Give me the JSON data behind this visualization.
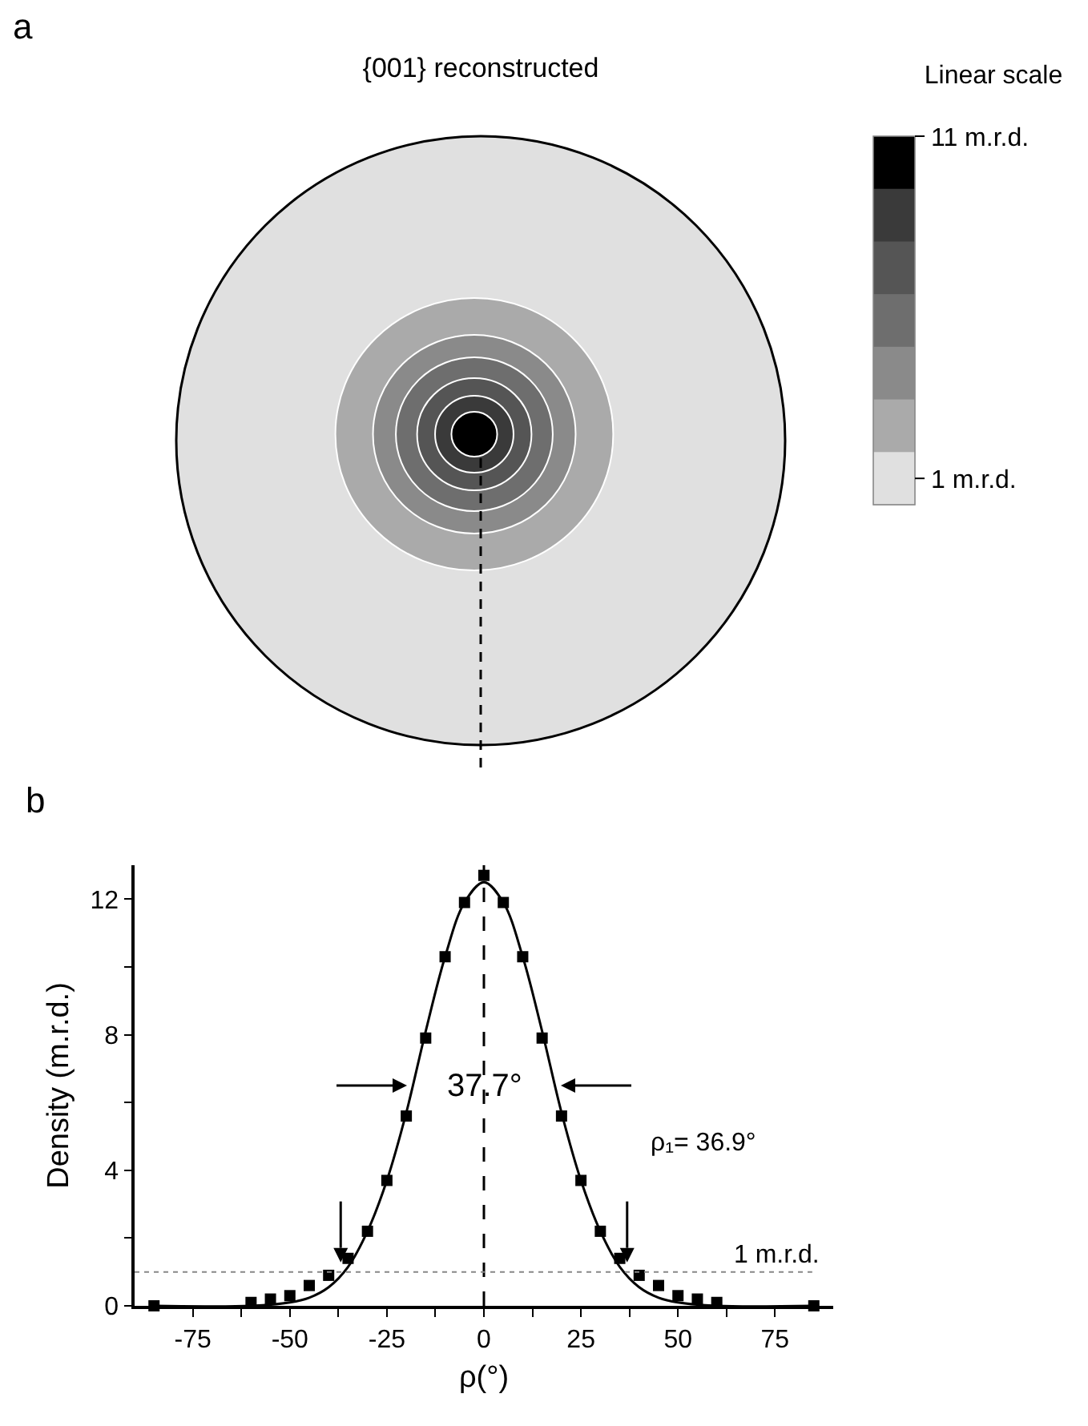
{
  "chart_data": [
    {
      "type": "other",
      "title": "{001} reconstructed",
      "clabel": "Linear scale",
      "colors": [
        "#000000",
        "#3a3a3a",
        "#555555",
        "#6e6e6e",
        "#8a8a8a",
        "#aaaaaa",
        "#e0e0e0"
      ],
      "annotations": [
        "a",
        "11 m.r.d.",
        "1 m.r.d."
      ]
    },
    {
      "type": "line",
      "xlabel": "ρ(°)",
      "ylabel": "Density (m.r.d.)",
      "xlim": [
        -90,
        90
      ],
      "ylim": [
        0,
        13
      ],
      "xticks": [
        -75,
        -50,
        -25,
        0,
        25,
        50,
        75,
        {
          "value": -62.5,
          "label": null
        },
        {
          "value": -37.5,
          "label": null
        },
        {
          "value": -12.5,
          "label": null
        },
        {
          "value": 12.5,
          "label": null
        },
        {
          "value": 37.5,
          "label": null
        },
        {
          "value": 62.5,
          "label": null
        }
      ],
      "yticks": [
        0,
        4,
        8,
        12,
        {
          "value": 2,
          "label": null
        },
        {
          "value": 6,
          "label": null
        },
        {
          "value": 10,
          "label": null
        }
      ],
      "series": [
        {
          "type": "scatter",
          "marker": "square",
          "color": "#000000",
          "x": [
            -85,
            -60,
            -55,
            -50,
            -45,
            -40,
            -35,
            -30,
            -25,
            -20,
            -15,
            -10,
            -5,
            0,
            5,
            10,
            15,
            20,
            25,
            30,
            35,
            40,
            45,
            50,
            55,
            60,
            85
          ],
          "values": [
            0,
            0.1,
            0.2,
            0.3,
            0.6,
            0.9,
            1.4,
            2.2,
            3.7,
            5.6,
            7.9,
            10.3,
            11.9,
            12.7,
            11.9,
            10.3,
            7.9,
            5.6,
            3.7,
            2.2,
            1.4,
            0.9,
            0.6,
            0.3,
            0.2,
            0.1,
            0
          ]
        },
        {
          "type": "line",
          "marker": "none",
          "line_style": "solid",
          "color": "#000000",
          "x": [
            -85,
            -60,
            -50,
            -45,
            -40,
            -35,
            -30,
            -25,
            -20,
            -15,
            -10,
            -5,
            0,
            5,
            10,
            15,
            20,
            25,
            30,
            35,
            40,
            45,
            50,
            60,
            85
          ],
          "values": [
            0,
            0,
            0.1,
            0.24,
            0.55,
            1.15,
            2.2,
            3.7,
            5.7,
            8.1,
            10.3,
            11.9,
            12.5,
            11.9,
            10.3,
            8.1,
            5.7,
            3.7,
            2.2,
            1.15,
            0.55,
            0.24,
            0.1,
            0,
            0
          ]
        }
      ],
      "ref_lines": [
        {
          "axis": "x",
          "value": 0,
          "color": "#000000",
          "line_style": "dashed"
        },
        {
          "axis": "y",
          "value": 1,
          "label": "1 m.r.d.",
          "color": "#888888",
          "line_style": "dotted"
        }
      ],
      "annotations": [
        {
          "text": "37.7°",
          "x": 0,
          "y": 6.5
        },
        "ρ₁= 36.9°",
        "b"
      ],
      "grid": false
    }
  ]
}
